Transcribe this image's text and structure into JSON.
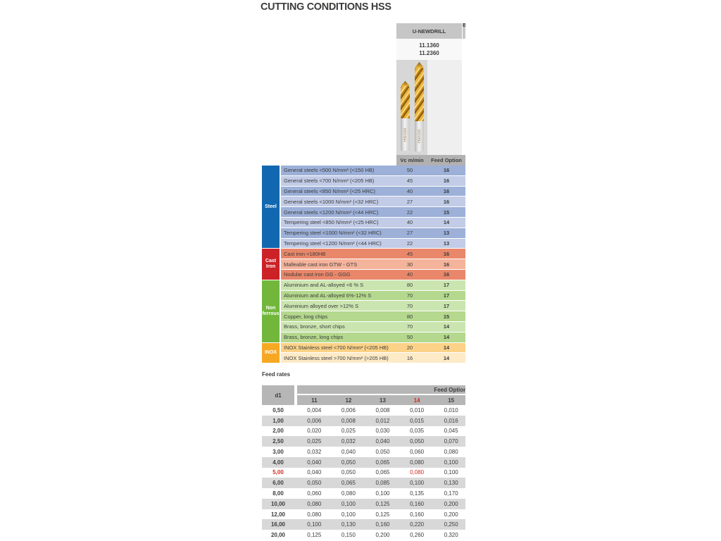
{
  "page": {
    "title": "CUTTING CONDITIONS HSS"
  },
  "product": {
    "name": "U-NEWDRILL",
    "codes": [
      "11.1360",
      "11.2360"
    ],
    "brand": "Helion",
    "neighbor_partial": "B"
  },
  "cutting_table": {
    "header": {
      "vc": "Vc m/min",
      "feed": "Feed Option"
    },
    "sections": [
      {
        "label": "Steel",
        "color": "#1168b0",
        "shades": [
          "#9cb0d8",
          "#c2cce7"
        ],
        "rows": [
          {
            "material": "General steels <500 N/mm²  (<150 HB)",
            "vc": "50",
            "feed": "16"
          },
          {
            "material": "General steels <700 N/mm²  (<205 HB)",
            "vc": "45",
            "feed": "16"
          },
          {
            "material": "General steels <850 N/mm² (<25 HRC)",
            "vc": "40",
            "feed": "16"
          },
          {
            "material": "General steels <1000 N/mm² (<32 HRC)",
            "vc": "27",
            "feed": "16"
          },
          {
            "material": "General steels <1200 N/mm²  (<44 HRC)",
            "vc": "22",
            "feed": "15"
          },
          {
            "material": "Tempering steel  <850 N/mm²  (<25 HRC)",
            "vc": "40",
            "feed": "14"
          },
          {
            "material": "Tempering steel  <1000 N/mm²  (<32 HRC)",
            "vc": "27",
            "feed": "13"
          },
          {
            "material": "Tempering steel  <1200 N/mm²  (<44 HRC)",
            "vc": "22",
            "feed": "13"
          }
        ]
      },
      {
        "label": "Cast Iron",
        "color": "#cc2127",
        "shades": [
          "#e9876a",
          "#f4b39b"
        ],
        "rows": [
          {
            "material": "Cast iron <180HB",
            "vc": "45",
            "feed": "16"
          },
          {
            "material": "Malleable cast iron GTW - GTS",
            "vc": "30",
            "feed": "16"
          },
          {
            "material": "Nodular cast iron  GG - GGG",
            "vc": "40",
            "feed": "16"
          }
        ]
      },
      {
        "label": "Non ferrous",
        "color": "#72b73c",
        "shades": [
          "#cbe5b1",
          "#b4d88d"
        ],
        "rows": [
          {
            "material": "Aluminium and AL-alloyed   <6 % S",
            "vc": "80",
            "feed": "17"
          },
          {
            "material": "Aluminium and AL-alloyed 6%-12% S",
            "vc": "70",
            "feed": "17"
          },
          {
            "material": "Aluminium alloyed over   >12% S",
            "vc": "70",
            "feed": "17"
          },
          {
            "material": "Copper, long chips",
            "vc": "80",
            "feed": "15"
          },
          {
            "material": "Brass, bronze, short chips",
            "vc": "70",
            "feed": "14"
          },
          {
            "material": "Brass, bronze, long chips",
            "vc": "50",
            "feed": "14"
          }
        ]
      },
      {
        "label": "INOX",
        "color": "#f7a823",
        "shades": [
          "#fbd287",
          "#fdeac7"
        ],
        "rows": [
          {
            "material": "INOX Stainless steel  <700 N/mm² (<205 HB)",
            "vc": "20",
            "feed": "14"
          },
          {
            "material": "INOX Stainless steel  >700 N/mm² (>205 HB)",
            "vc": "16",
            "feed": "14"
          }
        ]
      }
    ]
  },
  "feed_rates": {
    "title": "Feed rates",
    "d1_label": "d1",
    "span_label": "Feed Option",
    "columns": [
      "11",
      "12",
      "13",
      "14",
      "15"
    ],
    "highlight_column_index": 3,
    "rows": [
      {
        "d1": "0,50",
        "values": [
          "0,004",
          "0,006",
          "0,008",
          "0,010",
          "0,010"
        ],
        "red": false
      },
      {
        "d1": "1,00",
        "values": [
          "0,006",
          "0,008",
          "0,012",
          "0,015",
          "0,016"
        ],
        "red": false
      },
      {
        "d1": "2,00",
        "values": [
          "0,020",
          "0,025",
          "0,030",
          "0,035",
          "0,045"
        ],
        "red": false
      },
      {
        "d1": "2,50",
        "values": [
          "0,025",
          "0,032",
          "0,040",
          "0,050",
          "0,070"
        ],
        "red": false
      },
      {
        "d1": "3,00",
        "values": [
          "0,032",
          "0,040",
          "0,050",
          "0,060",
          "0,080"
        ],
        "red": false
      },
      {
        "d1": "4,00",
        "values": [
          "0,040",
          "0,050",
          "0,065",
          "0,080",
          "0,100"
        ],
        "red": false
      },
      {
        "d1": "5,00",
        "values": [
          "0,040",
          "0,050",
          "0,065",
          "0,080",
          "0,100"
        ],
        "red": true
      },
      {
        "d1": "6,00",
        "values": [
          "0,050",
          "0,065",
          "0,085",
          "0,100",
          "0,130"
        ],
        "red": false
      },
      {
        "d1": "8,00",
        "values": [
          "0,060",
          "0,080",
          "0,100",
          "0,135",
          "0,170"
        ],
        "red": false
      },
      {
        "d1": "10,00",
        "values": [
          "0,080",
          "0,100",
          "0,125",
          "0,160",
          "0,200"
        ],
        "red": false
      },
      {
        "d1": "12,00",
        "values": [
          "0,080",
          "0,100",
          "0,125",
          "0,160",
          "0,200"
        ],
        "red": false
      },
      {
        "d1": "16,00",
        "values": [
          "0,100",
          "0,130",
          "0,160",
          "0,220",
          "0,250"
        ],
        "red": false
      },
      {
        "d1": "20,00",
        "values": [
          "0,125",
          "0,150",
          "0,200",
          "0,260",
          "0,320"
        ],
        "red": false
      }
    ]
  },
  "colors": {
    "text": "#3c3c3b",
    "red": "#d6291e",
    "header_gray": "#b6b6b6",
    "row_gray": "#d8d8d8"
  }
}
